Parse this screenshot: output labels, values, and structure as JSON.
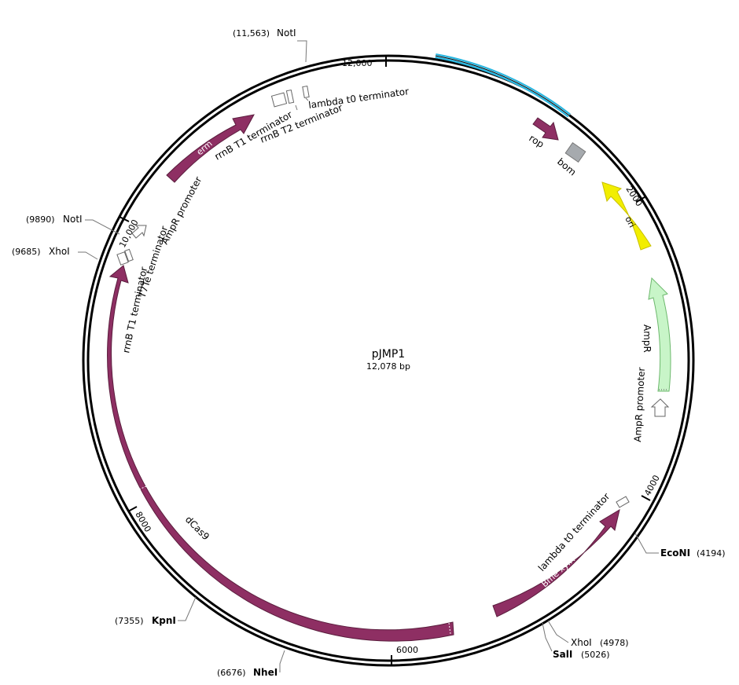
{
  "plasmid": {
    "name": "pJMP1",
    "length_label": "12,078 bp"
  },
  "ticks": [
    {
      "label": "12,000"
    },
    {
      "label": "2000"
    },
    {
      "label": "4000"
    },
    {
      "label": "6000"
    },
    {
      "label": "8000"
    },
    {
      "label": "10,000"
    }
  ],
  "sites": [
    {
      "name": "NotI",
      "pos": "(11,563)"
    },
    {
      "name": "NotI",
      "pos": "(9890)"
    },
    {
      "name": "XhoI",
      "pos": "(9685)"
    },
    {
      "name": "EcoNI",
      "pos": "(4194)"
    },
    {
      "name": "XhoI",
      "pos": "(4978)"
    },
    {
      "name": "SalI",
      "pos": "(5026)"
    },
    {
      "name": "NheI",
      "pos": "(6676)"
    },
    {
      "name": "KpnI",
      "pos": "(7355)"
    }
  ],
  "features": {
    "erm": "erm",
    "rrnB_T1_top": "rrnB T1 terminator",
    "rrnB_T2": "rrnB T2 terminator",
    "lambda_t0_top": "lambda t0 terminator",
    "AmpR_promoter_left": "AmpR promoter",
    "T7Te": "T7Te terminator",
    "rrnB_T1_left": "rrnB T1 terminator",
    "dCas9": "dCas9",
    "rop": "rop",
    "bom": "bom",
    "ori": "ori",
    "AmpR": "AmpR",
    "AmpR_promoter_right": "AmpR promoter",
    "lambda_t0_bottom": "lambda t0 terminator",
    "Bme_xylR": "Bme xylR"
  },
  "colors": {
    "backbone": "#000000",
    "highlight": "#29b6e0",
    "dCas9": "#8e2f63",
    "ori": "#f2ee00",
    "AmpR": "#c8f5c8",
    "bom": "#a6aaae"
  }
}
